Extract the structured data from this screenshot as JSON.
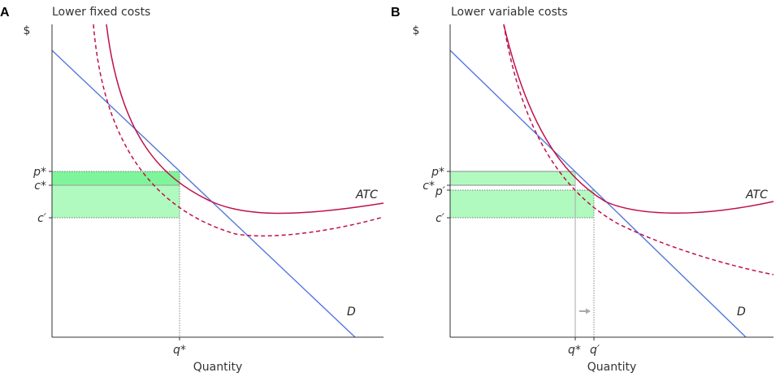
{
  "chart_data": [
    {
      "panel": "A",
      "type": "line",
      "title": "Lower fixed costs",
      "xlabel": "Quantity",
      "ylabel": "$",
      "grid": false,
      "x_ticks": [
        "q*"
      ],
      "y_ticks": [
        "p*",
        "c*",
        "c′"
      ],
      "curve_labels": {
        "atc": "ATC",
        "demand": "D"
      },
      "colors": {
        "demand": "#5577dd",
        "atc": "#c0104a",
        "revenue_box": "#7ef59a",
        "cost_box": "#b0fac0"
      }
    },
    {
      "panel": "B",
      "type": "line",
      "title": "Lower variable costs",
      "xlabel": "Quantity",
      "ylabel": "$",
      "grid": false,
      "x_ticks": [
        "q*",
        "q′"
      ],
      "y_ticks": [
        "p*",
        "c*",
        "p′",
        "c′"
      ],
      "curve_labels": {
        "atc": "ATC",
        "demand": "D"
      },
      "colors": {
        "demand": "#5577dd",
        "atc": "#c0104a",
        "revenue_box": "#b0fac0",
        "arrow": "#aaaaaa"
      }
    }
  ]
}
